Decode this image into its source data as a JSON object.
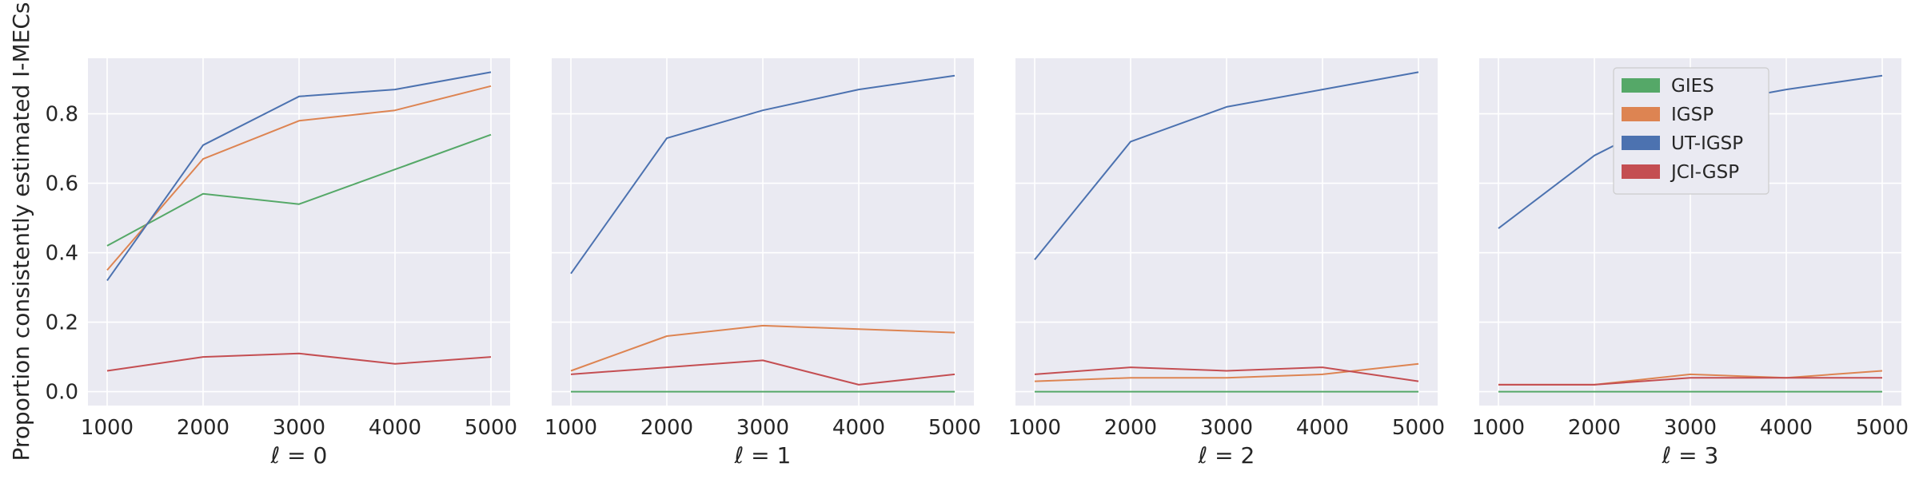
{
  "chart_data": {
    "type": "line",
    "ylabel": "Proportion consistently estimated I-MECs",
    "x": [
      1000,
      2000,
      3000,
      4000,
      5000
    ],
    "xticks": [
      "1000",
      "2000",
      "3000",
      "4000",
      "5000"
    ],
    "xlim": [
      800,
      5200
    ],
    "ylim": [
      -0.04,
      0.96
    ],
    "yticks": [
      0.0,
      0.2,
      0.4,
      0.6,
      0.8
    ],
    "ytick_labels": [
      "0.0",
      "0.2",
      "0.4",
      "0.6",
      "0.8"
    ],
    "grid": true,
    "sharey": true,
    "legend": {
      "panel": 3,
      "placement": "upper-center",
      "entries": [
        "GIES",
        "IGSP",
        "UT-IGSP",
        "JCI-GSP"
      ]
    },
    "series_colors": {
      "GIES": "#55a868",
      "IGSP": "#dd8452",
      "UT-IGSP": "#4c72b0",
      "JCI-GSP": "#c44e52"
    },
    "panels": [
      {
        "xlabel": "ℓ = 0",
        "series": [
          {
            "name": "GIES",
            "values": [
              0.42,
              0.57,
              0.54,
              0.64,
              0.74
            ]
          },
          {
            "name": "IGSP",
            "values": [
              0.35,
              0.67,
              0.78,
              0.81,
              0.88
            ]
          },
          {
            "name": "UT-IGSP",
            "values": [
              0.32,
              0.71,
              0.85,
              0.87,
              0.92
            ]
          },
          {
            "name": "JCI-GSP",
            "values": [
              0.06,
              0.1,
              0.11,
              0.08,
              0.1
            ]
          }
        ]
      },
      {
        "xlabel": "ℓ = 1",
        "series": [
          {
            "name": "GIES",
            "values": [
              0.0,
              0.0,
              0.0,
              0.0,
              0.0
            ]
          },
          {
            "name": "IGSP",
            "values": [
              0.06,
              0.16,
              0.19,
              0.18,
              0.17
            ]
          },
          {
            "name": "UT-IGSP",
            "values": [
              0.34,
              0.73,
              0.81,
              0.87,
              0.91
            ]
          },
          {
            "name": "JCI-GSP",
            "values": [
              0.05,
              0.07,
              0.09,
              0.02,
              0.05
            ]
          }
        ]
      },
      {
        "xlabel": "ℓ = 2",
        "series": [
          {
            "name": "GIES",
            "values": [
              0.0,
              0.0,
              0.0,
              0.0,
              0.0
            ]
          },
          {
            "name": "IGSP",
            "values": [
              0.03,
              0.04,
              0.04,
              0.05,
              0.08
            ]
          },
          {
            "name": "UT-IGSP",
            "values": [
              0.38,
              0.72,
              0.82,
              0.87,
              0.92
            ]
          },
          {
            "name": "JCI-GSP",
            "values": [
              0.05,
              0.07,
              0.06,
              0.07,
              0.03
            ]
          }
        ]
      },
      {
        "xlabel": "ℓ = 3",
        "series": [
          {
            "name": "GIES",
            "values": [
              0.0,
              0.0,
              0.0,
              0.0,
              0.0
            ]
          },
          {
            "name": "IGSP",
            "values": [
              0.02,
              0.02,
              0.05,
              0.04,
              0.06
            ]
          },
          {
            "name": "UT-IGSP",
            "values": [
              0.47,
              0.68,
              0.82,
              0.87,
              0.91
            ]
          },
          {
            "name": "JCI-GSP",
            "values": [
              0.02,
              0.02,
              0.04,
              0.04,
              0.04
            ]
          }
        ]
      }
    ]
  }
}
